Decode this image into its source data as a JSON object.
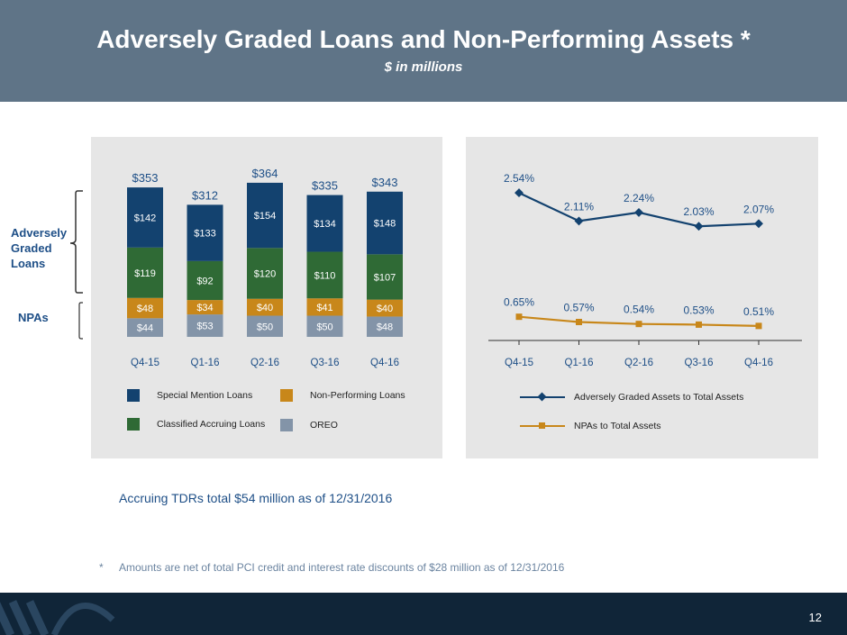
{
  "slide": {
    "title": "Adversely Graded Loans and Non-Performing Assets *",
    "subtitle": "$ in millions",
    "note": "Accruing TDRs total $54 million as of 12/31/2016",
    "footnote_marker": "*",
    "footnote": "Amounts are net of total PCI credit and interest rate discounts of $28 million as of 12/31/2016",
    "page_number": "12",
    "side_labels": {
      "adversely": "Adversely\nGraded\nLoans",
      "npas": "NPAs"
    }
  },
  "colors": {
    "header": "#5f7487",
    "footer": "#102538",
    "special_mention": "#13426f",
    "classified_accruing": "#2f6a35",
    "non_performing": "#c8871a",
    "oreo": "#8394a8",
    "line_ag": "#13426f",
    "line_npa": "#c8871a",
    "panel": "#e6e6e6"
  },
  "chart_data": [
    {
      "type": "bar",
      "stacked": true,
      "categories": [
        "Q4-15",
        "Q1-16",
        "Q2-16",
        "Q3-16",
        "Q4-16"
      ],
      "series": [
        {
          "name": "OREO",
          "values": [
            44,
            53,
            50,
            50,
            48
          ],
          "labels": [
            "$44",
            "$53",
            "$50",
            "$50",
            "$48"
          ]
        },
        {
          "name": "Non-Performing Loans",
          "values": [
            48,
            34,
            40,
            41,
            40
          ],
          "labels": [
            "$48",
            "$34",
            "$40",
            "$41",
            "$40"
          ]
        },
        {
          "name": "Classified Accruing Loans",
          "values": [
            119,
            92,
            120,
            110,
            107
          ],
          "labels": [
            "$119",
            "$92",
            "$120",
            "$110",
            "$107"
          ]
        },
        {
          "name": "Special Mention Loans",
          "values": [
            142,
            133,
            154,
            134,
            148
          ],
          "labels": [
            "$142",
            "$133",
            "$154",
            "$134",
            "$148"
          ]
        }
      ],
      "totals": [
        353,
        312,
        364,
        335,
        343
      ],
      "total_labels": [
        "$353",
        "$312",
        "$364",
        "$335",
        "$343"
      ],
      "legend": [
        "Special Mention Loans",
        "Non-Performing Loans",
        "Classified Accruing Loans",
        "OREO"
      ],
      "ylim": [
        0,
        400
      ]
    },
    {
      "type": "line",
      "categories": [
        "Q4-15",
        "Q1-16",
        "Q2-16",
        "Q3-16",
        "Q4-16"
      ],
      "series": [
        {
          "name": "Adversely Graded Assets to Total Assets",
          "values": [
            2.54,
            2.11,
            2.24,
            2.03,
            2.07
          ],
          "labels": [
            "2.54%",
            "2.11%",
            "2.24%",
            "2.03%",
            "2.07%"
          ],
          "marker": "diamond"
        },
        {
          "name": "NPAs to Total Assets",
          "values": [
            0.65,
            0.57,
            0.54,
            0.53,
            0.51
          ],
          "labels": [
            "0.65%",
            "0.57%",
            "0.54%",
            "0.53%",
            "0.51%"
          ],
          "marker": "square"
        }
      ],
      "ylim": [
        0,
        3.0
      ]
    }
  ]
}
